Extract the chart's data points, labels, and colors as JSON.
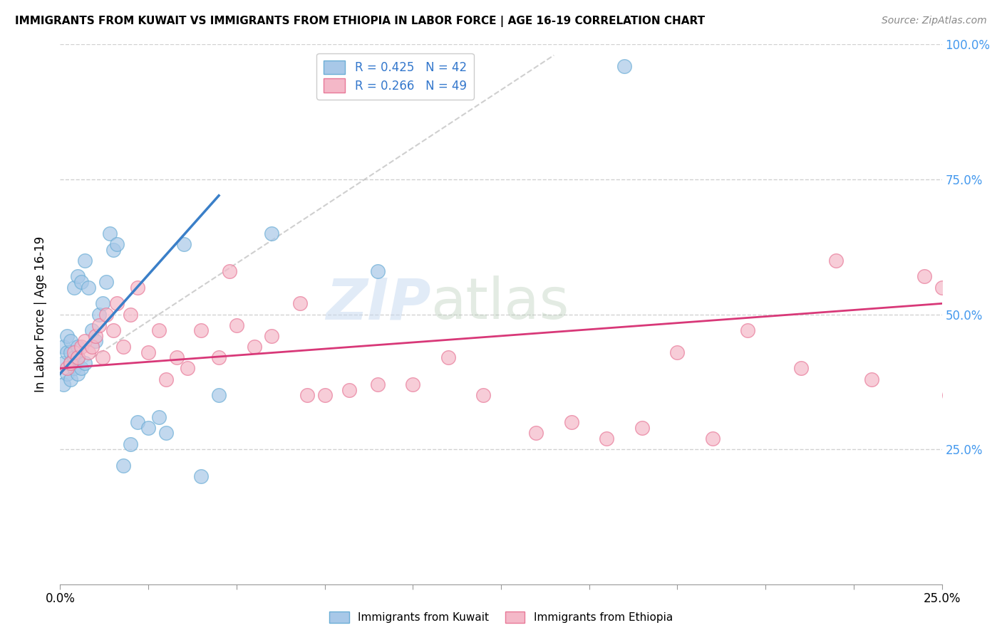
{
  "title": "IMMIGRANTS FROM KUWAIT VS IMMIGRANTS FROM ETHIOPIA IN LABOR FORCE | AGE 16-19 CORRELATION CHART",
  "source": "Source: ZipAtlas.com",
  "ylabel": "In Labor Force | Age 16-19",
  "kuwait_R": 0.425,
  "kuwait_N": 42,
  "ethiopia_R": 0.266,
  "ethiopia_N": 49,
  "kuwait_color": "#a8c8e8",
  "kuwait_color_edge": "#6baed6",
  "ethiopia_color": "#f4b8c8",
  "ethiopia_color_edge": "#e87898",
  "kuwait_line_color": "#3a7fc8",
  "ethiopia_line_color": "#d83878",
  "watermark_zip": "ZIP",
  "watermark_atlas": "atlas",
  "xlim": [
    0.0,
    0.25
  ],
  "ylim": [
    0.0,
    1.0
  ],
  "kuwait_x": [
    0.001,
    0.001,
    0.001,
    0.002,
    0.002,
    0.002,
    0.003,
    0.003,
    0.003,
    0.003,
    0.004,
    0.004,
    0.004,
    0.005,
    0.005,
    0.005,
    0.005,
    0.006,
    0.006,
    0.007,
    0.007,
    0.008,
    0.009,
    0.01,
    0.011,
    0.012,
    0.013,
    0.014,
    0.015,
    0.016,
    0.018,
    0.02,
    0.022,
    0.025,
    0.028,
    0.03,
    0.035,
    0.04,
    0.045,
    0.06,
    0.09,
    0.16
  ],
  "kuwait_y": [
    0.37,
    0.41,
    0.44,
    0.39,
    0.43,
    0.46,
    0.38,
    0.41,
    0.43,
    0.45,
    0.4,
    0.42,
    0.55,
    0.39,
    0.42,
    0.44,
    0.57,
    0.4,
    0.56,
    0.41,
    0.6,
    0.55,
    0.47,
    0.45,
    0.5,
    0.52,
    0.56,
    0.65,
    0.62,
    0.63,
    0.22,
    0.26,
    0.3,
    0.29,
    0.31,
    0.28,
    0.63,
    0.2,
    0.35,
    0.65,
    0.58,
    0.96
  ],
  "ethiopia_x": [
    0.002,
    0.003,
    0.004,
    0.005,
    0.006,
    0.007,
    0.008,
    0.009,
    0.01,
    0.011,
    0.012,
    0.013,
    0.015,
    0.016,
    0.018,
    0.02,
    0.022,
    0.025,
    0.028,
    0.03,
    0.033,
    0.036,
    0.04,
    0.045,
    0.05,
    0.055,
    0.06,
    0.068,
    0.075,
    0.082,
    0.09,
    0.1,
    0.11,
    0.12,
    0.135,
    0.145,
    0.155,
    0.165,
    0.175,
    0.185,
    0.195,
    0.21,
    0.22,
    0.23,
    0.245,
    0.25,
    0.252,
    0.048,
    0.07
  ],
  "ethiopia_y": [
    0.4,
    0.41,
    0.43,
    0.42,
    0.44,
    0.45,
    0.43,
    0.44,
    0.46,
    0.48,
    0.42,
    0.5,
    0.47,
    0.52,
    0.44,
    0.5,
    0.55,
    0.43,
    0.47,
    0.38,
    0.42,
    0.4,
    0.47,
    0.42,
    0.48,
    0.44,
    0.46,
    0.52,
    0.35,
    0.36,
    0.37,
    0.37,
    0.42,
    0.35,
    0.28,
    0.3,
    0.27,
    0.29,
    0.43,
    0.27,
    0.47,
    0.4,
    0.6,
    0.38,
    0.57,
    0.55,
    0.35,
    0.58,
    0.35
  ],
  "diag_line_x": [
    0.0,
    0.14
  ],
  "diag_line_y": [
    0.38,
    0.98
  ],
  "kuwait_line_x": [
    0.0,
    0.045
  ],
  "kuwait_line_y": [
    0.39,
    0.72
  ],
  "ethiopia_line_x": [
    0.0,
    0.25
  ],
  "ethiopia_line_y": [
    0.4,
    0.52
  ]
}
